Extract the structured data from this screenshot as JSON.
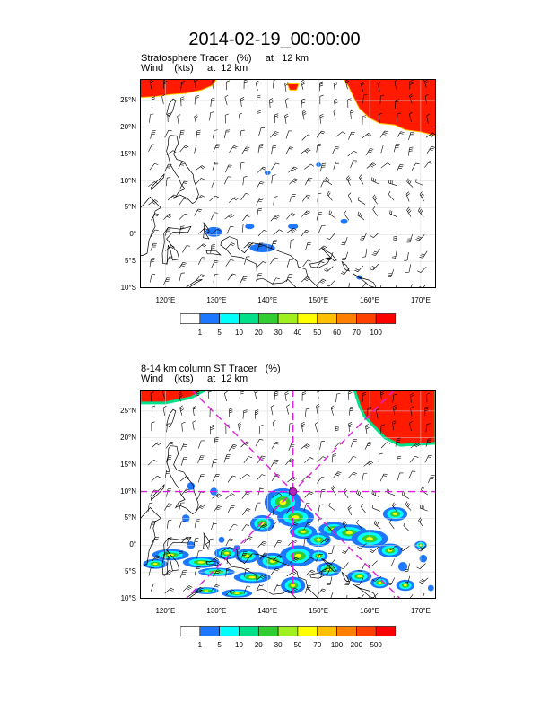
{
  "title": "2014-02-19_00:00:00",
  "panel1": {
    "line1": "Stratosphere Tracer   (%)     at   12 km",
    "line2": "Wind    (kts)     at  12 km",
    "colorbar": {
      "labels": [
        "1",
        "5",
        "10",
        "20",
        "30",
        "40",
        "50",
        "60",
        "70",
        "100"
      ],
      "colors": [
        "#ffffff",
        "#1e78ff",
        "#00ffff",
        "#00e08a",
        "#32cd32",
        "#a0f020",
        "#ffff00",
        "#ffc000",
        "#ff8000",
        "#ff4000",
        "#ff0000"
      ]
    }
  },
  "panel2": {
    "line1": "8-14 km column ST Tracer   (%)",
    "line2": "Wind    (kts)     at  12 km",
    "colorbar": {
      "labels": [
        "1",
        "5",
        "10",
        "20",
        "30",
        "50",
        "70",
        "100",
        "200",
        "500"
      ],
      "colors": [
        "#ffffff",
        "#1e78ff",
        "#00ffff",
        "#00e08a",
        "#32cd32",
        "#a0f020",
        "#ffff00",
        "#ffc000",
        "#ff8000",
        "#ff4000",
        "#ff0000"
      ]
    }
  },
  "map": {
    "lat_range": [
      -10,
      29
    ],
    "lon_range": [
      115,
      173
    ],
    "lat_ticks": [
      "25°N",
      "20°N",
      "15°N",
      "10°N",
      "5°N",
      "0°",
      "5°S",
      "10°S"
    ],
    "lon_ticks": [
      "120°E",
      "130°E",
      "140°E",
      "150°E",
      "160°E",
      "170°E"
    ],
    "marker": {
      "lon": 145,
      "lat": 10
    }
  }
}
